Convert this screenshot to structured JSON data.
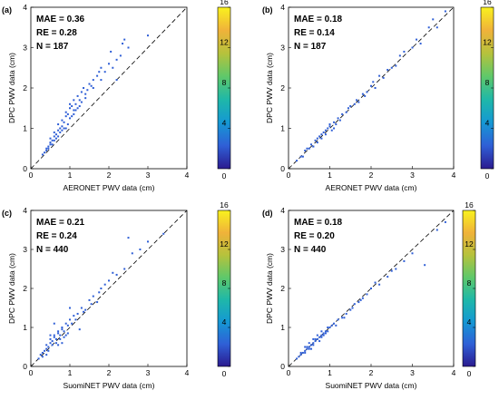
{
  "colorbar": {
    "range": [
      0,
      16
    ],
    "ticks": [
      "0",
      "4",
      "8",
      "12",
      "16"
    ],
    "colors": [
      "#2b1b8f",
      "#2f5fd6",
      "#1598d4",
      "#1fb8a8",
      "#5fc86a",
      "#b6c23c",
      "#f0b23a",
      "#f9f21e"
    ]
  },
  "point_color": "#2f5fd6",
  "chart_data": [
    {
      "type": "scatter",
      "panel_label": "(a)",
      "xlabel": "AERONET PWV data (cm)",
      "ylabel": "DPC PWV data (cm)",
      "xlim": [
        0,
        4
      ],
      "ylim": [
        0,
        4
      ],
      "xticks": [
        "0",
        "1",
        "2",
        "3",
        "4"
      ],
      "yticks": [
        "0",
        "1",
        "2",
        "3",
        "4"
      ],
      "stats": [
        "MAE = 0.36",
        "RE = 0.28",
        "N = 187"
      ],
      "reference_line": "1:1 dashed",
      "x": [
        0.3,
        0.35,
        0.4,
        0.45,
        0.5,
        0.5,
        0.55,
        0.6,
        0.6,
        0.65,
        0.7,
        0.7,
        0.75,
        0.8,
        0.8,
        0.85,
        0.9,
        0.9,
        0.95,
        1.0,
        1.0,
        1.05,
        1.1,
        1.1,
        1.15,
        1.2,
        1.25,
        1.3,
        1.35,
        1.4,
        1.5,
        1.6,
        1.7,
        1.8,
        1.9,
        2.0,
        2.1,
        2.2,
        2.3,
        2.4,
        2.5,
        0.4,
        0.5,
        0.6,
        0.7,
        0.8,
        0.9,
        1.0,
        1.1,
        1.2,
        1.3,
        1.4,
        1.6,
        1.8,
        2.2,
        3.0,
        0.45,
        0.55,
        0.65,
        0.75,
        0.85,
        0.95,
        1.05,
        1.15,
        1.25,
        1.45,
        1.55,
        1.75,
        2.05,
        2.35
      ],
      "y": [
        0.35,
        0.4,
        0.5,
        0.55,
        0.6,
        0.75,
        0.7,
        0.8,
        0.9,
        0.85,
        0.95,
        1.1,
        1.0,
        1.05,
        1.2,
        1.15,
        1.3,
        1.4,
        1.35,
        1.5,
        1.6,
        1.55,
        1.7,
        1.45,
        1.6,
        1.8,
        1.7,
        1.9,
        2.0,
        1.75,
        2.1,
        2.0,
        2.3,
        2.2,
        2.4,
        2.6,
        2.5,
        2.2,
        2.8,
        3.2,
        3.0,
        0.45,
        0.65,
        0.7,
        0.8,
        0.95,
        1.0,
        1.25,
        1.35,
        1.5,
        1.65,
        1.85,
        2.2,
        2.5,
        2.7,
        3.3,
        0.5,
        0.6,
        0.75,
        0.9,
        1.0,
        1.1,
        1.3,
        1.45,
        1.55,
        1.95,
        2.05,
        2.4,
        2.9,
        3.1
      ]
    },
    {
      "type": "scatter",
      "panel_label": "(b)",
      "xlabel": "AERONET PWV data (cm)",
      "ylabel": "DPC PWV data (cm)",
      "xlim": [
        0,
        4
      ],
      "ylim": [
        0,
        4
      ],
      "xticks": [
        "0",
        "1",
        "2",
        "3",
        "4"
      ],
      "yticks": [
        "0",
        "1",
        "2",
        "3",
        "4"
      ],
      "stats": [
        "MAE = 0.18",
        "RE = 0.14",
        "N = 187"
      ],
      "reference_line": "1:1 dashed",
      "x": [
        0.2,
        0.3,
        0.4,
        0.5,
        0.55,
        0.6,
        0.65,
        0.7,
        0.75,
        0.8,
        0.85,
        0.9,
        0.95,
        1.0,
        1.05,
        1.1,
        1.15,
        1.2,
        1.3,
        1.4,
        1.5,
        1.6,
        1.7,
        1.8,
        1.9,
        2.0,
        2.1,
        2.2,
        2.3,
        2.5,
        2.6,
        2.8,
        3.0,
        3.2,
        3.4,
        3.5,
        0.35,
        0.45,
        0.6,
        0.7,
        0.8,
        0.9,
        1.0,
        1.1,
        1.25,
        1.45,
        1.65,
        1.85,
        2.05,
        2.4,
        2.7,
        3.1,
        3.6,
        3.8
      ],
      "y": [
        0.2,
        0.3,
        0.45,
        0.5,
        0.6,
        0.55,
        0.7,
        0.65,
        0.8,
        0.75,
        0.9,
        0.85,
        1.0,
        1.05,
        0.95,
        1.15,
        1.1,
        1.25,
        1.35,
        1.4,
        1.55,
        1.6,
        1.65,
        1.85,
        1.9,
        2.05,
        2.0,
        2.3,
        2.25,
        2.5,
        2.55,
        2.9,
        3.0,
        3.1,
        3.5,
        3.7,
        0.3,
        0.5,
        0.55,
        0.75,
        0.85,
        0.95,
        1.1,
        1.0,
        1.2,
        1.5,
        1.7,
        1.8,
        2.15,
        2.45,
        2.8,
        3.2,
        3.5,
        3.9
      ]
    },
    {
      "type": "scatter",
      "panel_label": "(c)",
      "xlabel": "SuomiNET PWV data (cm)",
      "ylabel": "DPC PWV data (cm)",
      "xlim": [
        0,
        4
      ],
      "ylim": [
        0,
        4
      ],
      "xticks": [
        "0",
        "1",
        "2",
        "3",
        "4"
      ],
      "yticks": [
        "0",
        "1",
        "2",
        "3",
        "4"
      ],
      "stats": [
        "MAE = 0.21",
        "RE = 0.24",
        "N = 440"
      ],
      "reference_line": "1:1 dashed",
      "x": [
        0.2,
        0.25,
        0.3,
        0.35,
        0.4,
        0.4,
        0.45,
        0.5,
        0.5,
        0.55,
        0.6,
        0.6,
        0.65,
        0.7,
        0.7,
        0.75,
        0.8,
        0.8,
        0.85,
        0.9,
        0.95,
        1.0,
        1.05,
        1.1,
        1.2,
        1.3,
        1.4,
        1.5,
        1.6,
        1.7,
        1.8,
        1.9,
        2.0,
        2.2,
        2.4,
        2.6,
        2.8,
        3.0,
        3.4,
        0.3,
        0.45,
        0.55,
        0.65,
        0.75,
        0.85,
        0.95,
        1.15,
        1.35,
        1.55,
        1.75,
        2.1,
        2.5,
        1.0,
        0.6,
        0.7,
        0.5,
        0.4,
        0.8,
        0.9,
        1.25
      ],
      "y": [
        0.2,
        0.3,
        0.35,
        0.4,
        0.45,
        0.55,
        0.5,
        0.6,
        0.7,
        0.65,
        0.75,
        0.8,
        0.7,
        0.85,
        0.9,
        0.8,
        0.95,
        1.0,
        0.9,
        1.1,
        1.05,
        1.2,
        1.1,
        1.3,
        1.35,
        1.5,
        1.45,
        1.7,
        1.8,
        1.65,
        2.0,
        2.1,
        2.2,
        2.35,
        2.5,
        2.9,
        3.0,
        3.2,
        3.4,
        0.25,
        0.4,
        0.55,
        0.6,
        0.7,
        0.75,
        0.85,
        1.2,
        1.4,
        1.6,
        1.9,
        2.4,
        3.3,
        1.5,
        1.1,
        0.55,
        0.8,
        0.3,
        0.6,
        0.8,
        0.95
      ]
    },
    {
      "type": "scatter",
      "panel_label": "(d)",
      "xlabel": "SuomiNET PWV data (cm)",
      "ylabel": "DPC PWV data (cm)",
      "xlim": [
        0,
        4
      ],
      "ylim": [
        0,
        4
      ],
      "xticks": [
        "0",
        "1",
        "2",
        "3",
        "4"
      ],
      "yticks": [
        "0",
        "1",
        "2",
        "3",
        "4"
      ],
      "stats": [
        "MAE = 0.18",
        "RE = 0.20",
        "N = 440"
      ],
      "reference_line": "1:1 dashed",
      "x": [
        0.2,
        0.25,
        0.3,
        0.35,
        0.4,
        0.4,
        0.45,
        0.5,
        0.5,
        0.55,
        0.6,
        0.6,
        0.65,
        0.7,
        0.7,
        0.75,
        0.8,
        0.8,
        0.85,
        0.9,
        0.95,
        1.0,
        1.05,
        1.1,
        1.2,
        1.3,
        1.4,
        1.5,
        1.6,
        1.7,
        1.8,
        1.9,
        2.0,
        2.2,
        2.4,
        2.6,
        2.8,
        3.0,
        3.3,
        3.6,
        3.8,
        0.3,
        0.45,
        0.55,
        0.65,
        0.75,
        0.85,
        0.95,
        1.15,
        1.35,
        1.55,
        1.75,
        2.1,
        2.5,
        0.6,
        0.5,
        0.4,
        0.8,
        0.9
      ],
      "y": [
        0.2,
        0.25,
        0.3,
        0.35,
        0.4,
        0.5,
        0.45,
        0.5,
        0.6,
        0.55,
        0.6,
        0.7,
        0.65,
        0.7,
        0.8,
        0.75,
        0.8,
        0.9,
        0.85,
        0.9,
        1.0,
        1.0,
        1.05,
        1.1,
        1.2,
        1.25,
        1.35,
        1.45,
        1.6,
        1.65,
        1.75,
        1.85,
        2.0,
        2.1,
        2.3,
        2.5,
        2.7,
        2.9,
        2.6,
        3.5,
        3.7,
        0.35,
        0.5,
        0.45,
        0.7,
        0.65,
        0.8,
        0.9,
        1.05,
        1.25,
        1.5,
        1.7,
        2.15,
        2.45,
        0.55,
        0.45,
        0.35,
        0.75,
        0.85
      ]
    }
  ]
}
